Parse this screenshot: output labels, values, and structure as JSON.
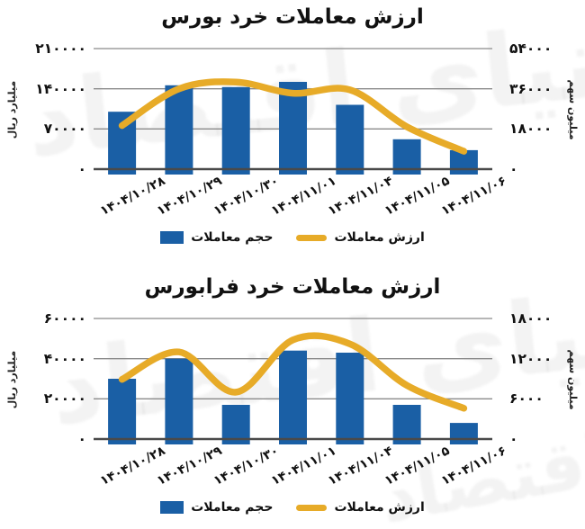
{
  "watermark": {
    "text": "دنیای اقتصاد"
  },
  "colors": {
    "bar_blue": "#1a5fa5",
    "line_gold": "#e7ab28",
    "grid_gray": "#8a8a8a",
    "axis_dark": "#4a4a4a",
    "text_black": "#111111"
  },
  "legend": {
    "volume_label": "حجم معاملات",
    "value_label": "ارزش معاملات"
  },
  "chart_data": [
    {
      "type": "bar",
      "title": "ارزش معاملات خرد بورس",
      "categories": [
        "۱۴۰۴/۱۰/۲۸",
        "۱۴۰۴/۱۰/۲۹",
        "۱۴۰۴/۱۰/۳۰",
        "۱۴۰۴/۱۱/۰۱",
        "۱۴۰۴/۱۱/۰۴",
        "۱۴۰۴/۱۱/۰۵",
        "۱۴۰۴/۱۱/۰۶"
      ],
      "series": [
        {
          "name": "حجم معاملات",
          "type": "bar",
          "axis": "left",
          "values": [
            100000,
            146000,
            143000,
            152000,
            112000,
            52000,
            33000
          ]
        },
        {
          "name": "ارزش معاملات",
          "type": "line",
          "axis": "right",
          "values": [
            19500,
            36000,
            39000,
            34000,
            35500,
            19000,
            8000
          ]
        }
      ],
      "left_axis": {
        "label": "میلیارد ریال",
        "min": 0,
        "max": 210000,
        "ticks": [
          "۲۱۰۰۰۰",
          "۱۴۰۰۰۰",
          "۷۰۰۰۰",
          "۰"
        ],
        "tick_values": [
          210000,
          140000,
          70000,
          0
        ]
      },
      "right_axis": {
        "label": "میلیون سهم",
        "min": 0,
        "max": 54000,
        "ticks": [
          "۵۴۰۰۰",
          "۳۶۰۰۰",
          "۱۸۰۰۰",
          "۰"
        ],
        "tick_values": [
          54000,
          36000,
          18000,
          0
        ]
      },
      "grid": true,
      "legend_position": "bottom"
    },
    {
      "type": "bar",
      "title": "ارزش معاملات خرد فرابورس",
      "categories": [
        "۱۴۰۴/۱۰/۲۸",
        "۱۴۰۴/۱۰/۲۹",
        "۱۴۰۴/۱۰/۳۰",
        "۱۴۰۴/۱۱/۰۱",
        "۱۴۰۴/۱۱/۰۴",
        "۱۴۰۴/۱۱/۰۵",
        "۱۴۰۴/۱۱/۰۶"
      ],
      "series": [
        {
          "name": "حجم معاملات",
          "type": "bar",
          "axis": "left",
          "values": [
            30000,
            40000,
            17000,
            44000,
            43000,
            17000,
            8000
          ]
        },
        {
          "name": "ارزش معاملات",
          "type": "line",
          "axis": "right",
          "values": [
            8900,
            13000,
            7000,
            14800,
            14200,
            8000,
            4600
          ]
        }
      ],
      "left_axis": {
        "label": "میلیارد ریال",
        "min": 0,
        "max": 60000,
        "ticks": [
          "۶۰۰۰۰",
          "۴۰۰۰۰",
          "۲۰۰۰۰",
          "۰"
        ],
        "tick_values": [
          60000,
          40000,
          20000,
          0
        ]
      },
      "right_axis": {
        "label": "میلیون سهم",
        "min": 0,
        "max": 18000,
        "ticks": [
          "۱۸۰۰۰",
          "۱۲۰۰۰",
          "۶۰۰۰",
          "۰"
        ],
        "tick_values": [
          18000,
          12000,
          6000,
          0
        ]
      },
      "grid": true,
      "legend_position": "bottom"
    }
  ]
}
